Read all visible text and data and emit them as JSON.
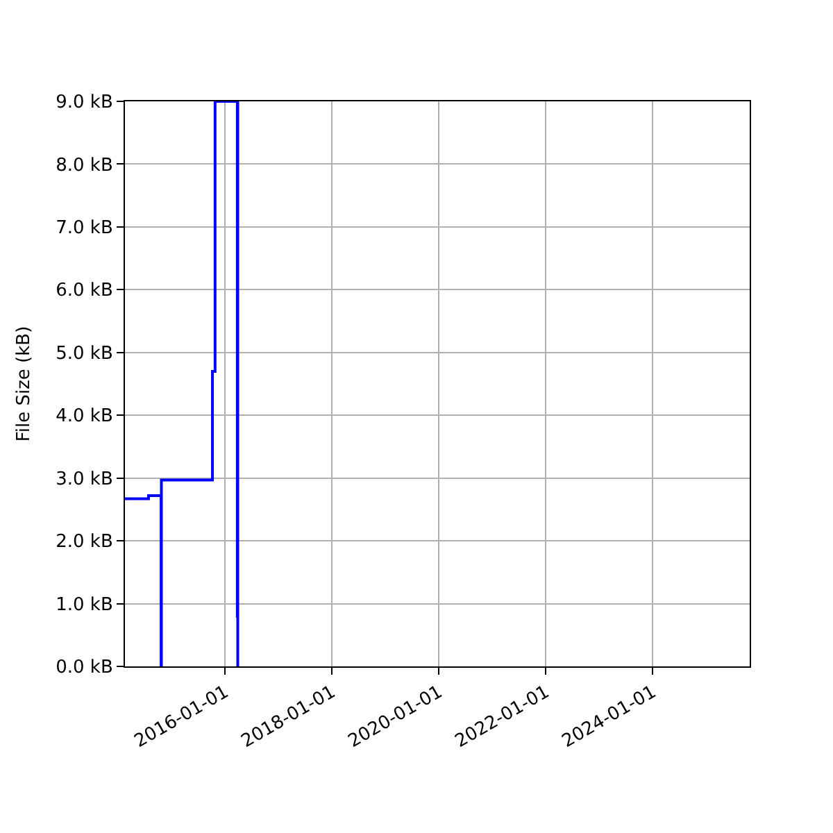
{
  "chart_data": {
    "type": "step",
    "ylabel": "File Size (kB)",
    "x": [
      "2014-02-15",
      "2014-07-26",
      "2014-10-20",
      "2014-10-22",
      "2015-10-06",
      "2015-10-24",
      "2016-03-24",
      "2016-03-25",
      "2016-03-27"
    ],
    "series": [
      {
        "color": "#0000ff",
        "values": [
          2.67,
          2.72,
          0,
          2.97,
          4.7,
          9.0,
          0.8,
          9.0,
          0
        ]
      }
    ],
    "xlim": [
      "2014-02-15",
      "2025-10-25"
    ],
    "xticks": [
      {
        "value": "2016-01-01",
        "label": "2016-01-01"
      },
      {
        "value": "2018-01-01",
        "label": "2018-01-01"
      },
      {
        "value": "2020-01-01",
        "label": "2020-01-01"
      },
      {
        "value": "2022-01-01",
        "label": "2022-01-01"
      },
      {
        "value": "2024-01-01",
        "label": "2024-01-01"
      }
    ],
    "ylim": [
      0,
      9
    ],
    "yticks": [
      {
        "value": 0,
        "label": "0.0 kB"
      },
      {
        "value": 1,
        "label": "1.0 kB"
      },
      {
        "value": 2,
        "label": "2.0 kB"
      },
      {
        "value": 3,
        "label": "3.0 kB"
      },
      {
        "value": 4,
        "label": "4.0 kB"
      },
      {
        "value": 5,
        "label": "5.0 kB"
      },
      {
        "value": 6,
        "label": "6.0 kB"
      },
      {
        "value": 7,
        "label": "7.0 kB"
      },
      {
        "value": 8,
        "label": "8.0 kB"
      },
      {
        "value": 9,
        "label": "9.0 kB"
      }
    ],
    "grid": true,
    "legend": false
  }
}
